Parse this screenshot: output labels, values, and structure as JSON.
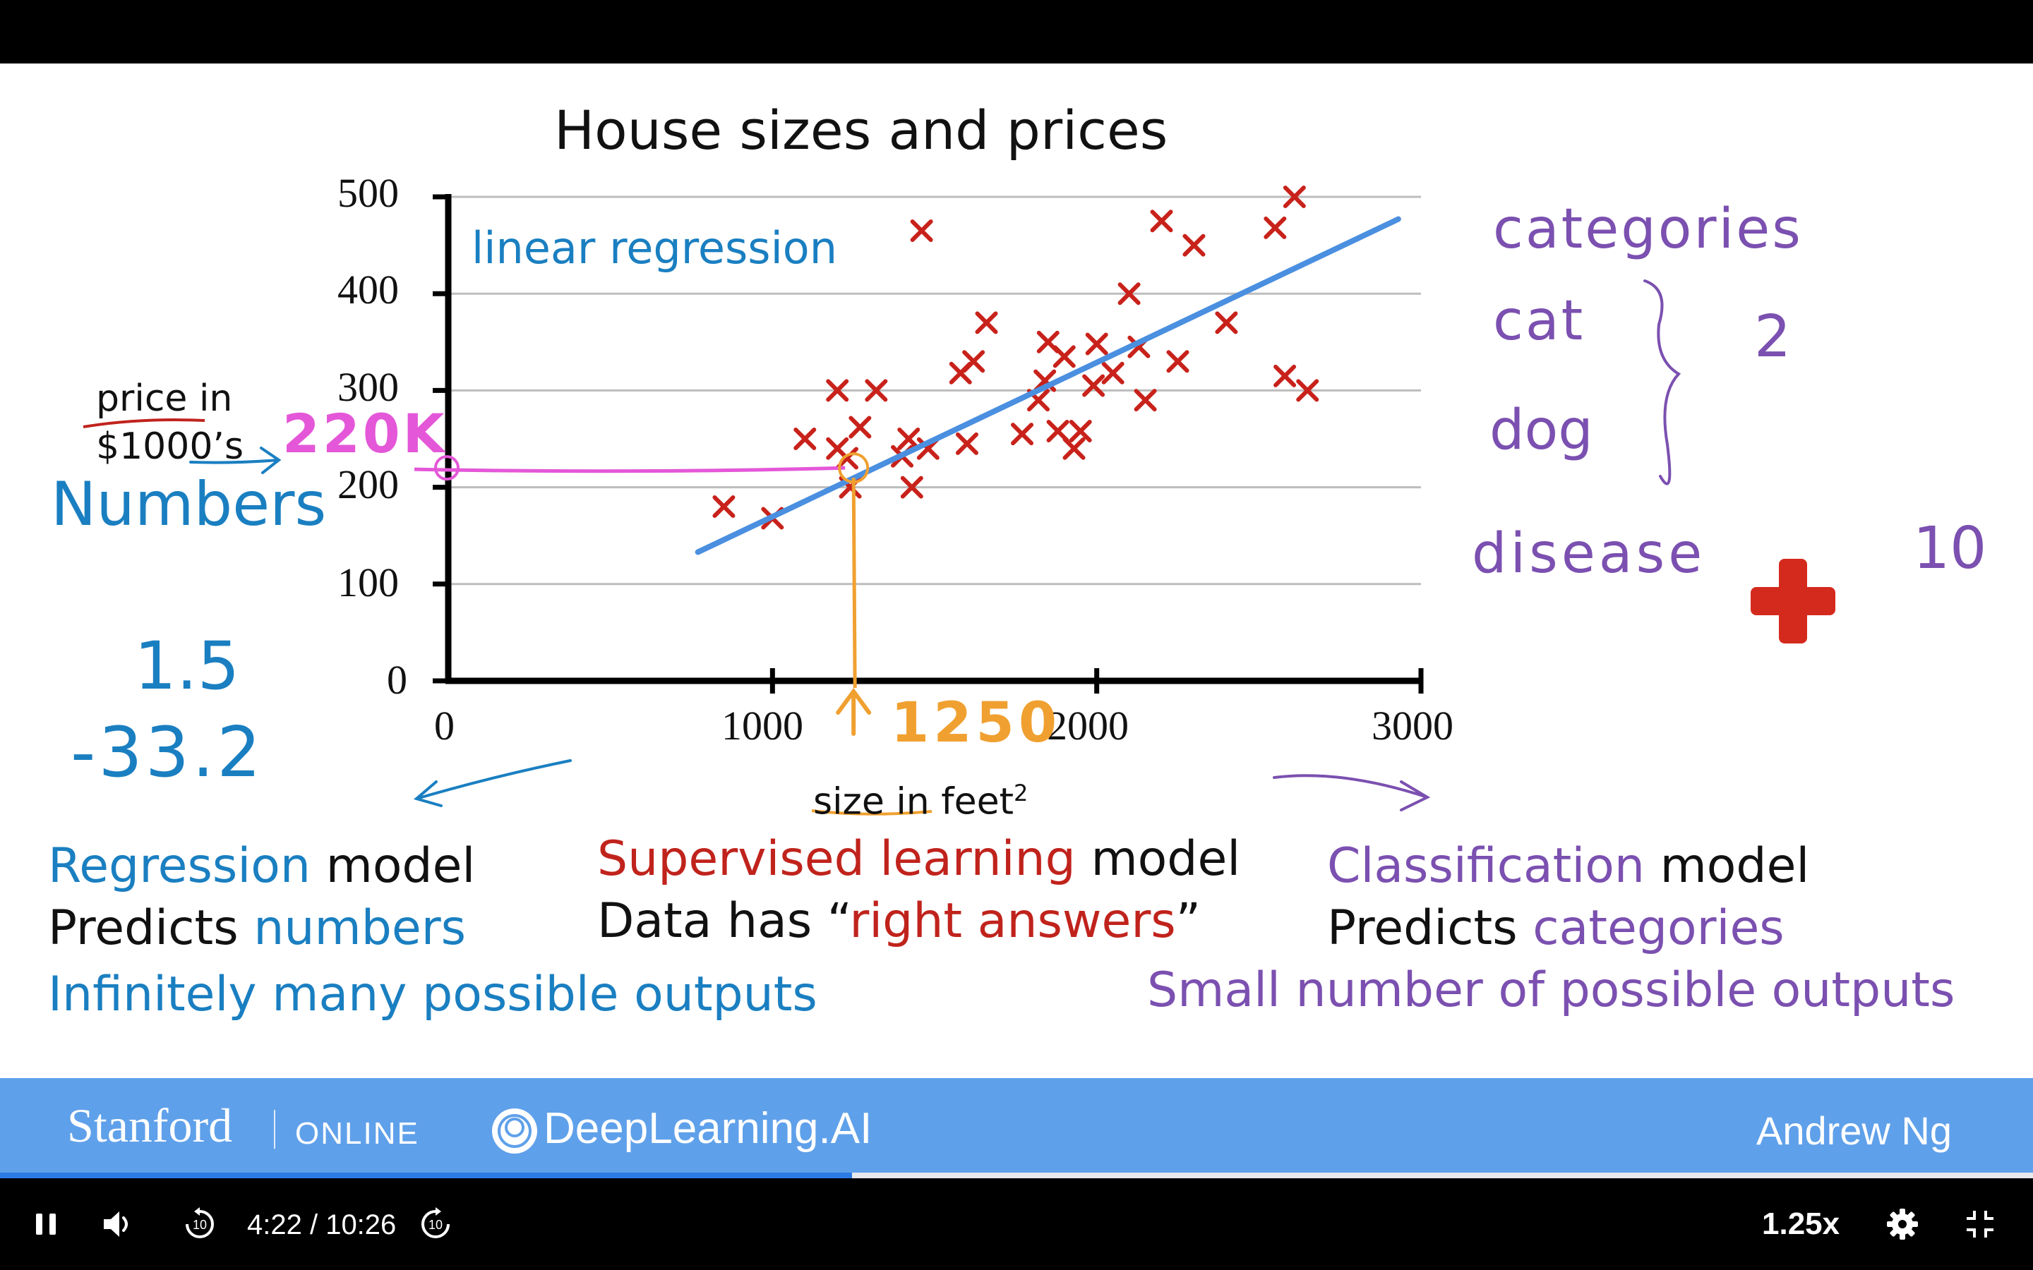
{
  "slide": {
    "title": "House sizes and prices",
    "y_axis_label": [
      "price in",
      "$1000’s"
    ],
    "x_axis_label": "size in feet",
    "x_axis_label_sup": "2",
    "regression_label": "linear regression"
  },
  "chart_data": {
    "type": "scatter",
    "title": "House sizes and prices",
    "xlabel": "size in feet²",
    "ylabel": "price in $1000’s",
    "xlim": [
      0,
      3000
    ],
    "ylim": [
      0,
      500
    ],
    "x_ticks": [
      "0",
      "1000",
      "2000",
      "3000"
    ],
    "y_ticks": [
      "0",
      "100",
      "200",
      "300",
      "400",
      "500"
    ],
    "grid": "horizontal",
    "points": [
      [
        850,
        180
      ],
      [
        1000,
        168
      ],
      [
        1100,
        250
      ],
      [
        1200,
        300
      ],
      [
        1200,
        240
      ],
      [
        1230,
        230
      ],
      [
        1240,
        200
      ],
      [
        1270,
        262
      ],
      [
        1320,
        300
      ],
      [
        1400,
        232
      ],
      [
        1420,
        250
      ],
      [
        1430,
        200
      ],
      [
        1460,
        465
      ],
      [
        1480,
        240
      ],
      [
        1580,
        318
      ],
      [
        1620,
        330
      ],
      [
        1600,
        245
      ],
      [
        1660,
        370
      ],
      [
        1770,
        255
      ],
      [
        1820,
        290
      ],
      [
        1850,
        350
      ],
      [
        1840,
        310
      ],
      [
        1900,
        335
      ],
      [
        1880,
        258
      ],
      [
        1930,
        240
      ],
      [
        1950,
        258
      ],
      [
        1990,
        305
      ],
      [
        2000,
        348
      ],
      [
        2050,
        318
      ],
      [
        2100,
        400
      ],
      [
        2130,
        345
      ],
      [
        2150,
        290
      ],
      [
        2200,
        475
      ],
      [
        2250,
        330
      ],
      [
        2300,
        450
      ],
      [
        2400,
        370
      ],
      [
        2550,
        468
      ],
      [
        2580,
        315
      ],
      [
        2610,
        500
      ],
      [
        2650,
        300
      ]
    ],
    "series": [
      {
        "name": "linear regression",
        "x": [
          770,
          2930
        ],
        "y": [
          133,
          477
        ]
      }
    ]
  },
  "annotations": {
    "value_220k": "220K",
    "value_1250": "1250",
    "numbers": "Numbers",
    "num_1": "1.5",
    "num_2": "-33.2",
    "categories": "categories",
    "cat": "cat",
    "dog": "dog",
    "count_2": "2",
    "disease": "disease",
    "count_10": "10"
  },
  "lecture": {
    "regression_word": "Regression",
    "model_word": "model",
    "predicts_word": "Predicts",
    "numbers_word": "numbers",
    "infinite": "Infinitely many possible outputs",
    "supervised": "Supervised learning",
    "data_has": "Data has “",
    "right_answers": "right answers",
    "close_quote": "”",
    "classification": "Classification",
    "categories_word": "categories",
    "small_number": "Small number of possible outputs"
  },
  "banner": {
    "stanford": "Stanford",
    "online": "ONLINE",
    "deeplearning": "DeepLearning.AI",
    "instructor": "Andrew Ng"
  },
  "player": {
    "time": "4:22 / 10:26",
    "speed": "1.25x",
    "progress": 0.419,
    "skip_seconds": "10",
    "icons": [
      "pause-icon",
      "volume-icon",
      "rewind-icon",
      "forward-icon",
      "settings-icon",
      "exit-fullscreen-icon"
    ]
  },
  "colors": {
    "slide_blue": "#1a7fc1",
    "slide_red": "#c0231c",
    "slide_purple": "#7b50b0",
    "pink": "#e457d8",
    "orange": "#f0a030",
    "banner": "#5fa0ea",
    "progress": "#2c7be5"
  }
}
